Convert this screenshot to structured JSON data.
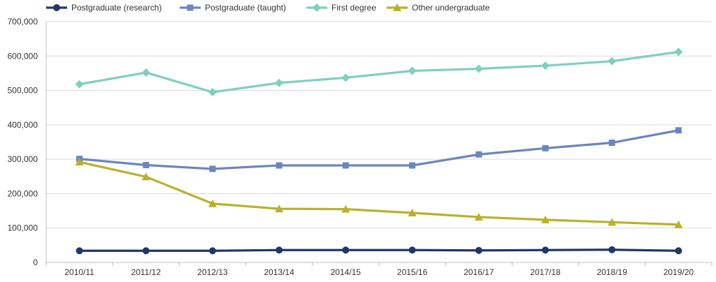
{
  "chart_data": {
    "type": "line",
    "categories": [
      "2010/11",
      "2011/12",
      "2012/13",
      "2013/14",
      "2014/15",
      "2015/16",
      "2016/17",
      "2017/18",
      "2018/19",
      "2019/20"
    ],
    "ylim": [
      0,
      700000
    ],
    "yticks": [
      0,
      100000,
      200000,
      300000,
      400000,
      500000,
      600000,
      700000
    ],
    "ytick_labels": [
      "0",
      "100,000",
      "200,000",
      "300,000",
      "400,000",
      "500,000",
      "600,000",
      "700,000"
    ],
    "grid": true,
    "legend_position": "top",
    "series": [
      {
        "name": "Postgraduate (research)",
        "color": "#1f3864",
        "marker": "circle",
        "values": [
          34000,
          34000,
          34000,
          36000,
          36000,
          36000,
          35000,
          36000,
          37000,
          34000
        ]
      },
      {
        "name": "Postgraduate (taught)",
        "color": "#6b86bd",
        "marker": "square",
        "values": [
          301000,
          283000,
          272000,
          282000,
          282000,
          282000,
          314000,
          332000,
          348000,
          384000
        ]
      },
      {
        "name": "First degree",
        "color": "#7fcfbe",
        "marker": "diamond",
        "values": [
          518000,
          552000,
          495000,
          522000,
          537000,
          557000,
          563000,
          572000,
          585000,
          612000
        ]
      },
      {
        "name": "Other undergraduate",
        "color": "#b9b12c",
        "marker": "triangle",
        "values": [
          292000,
          249000,
          171000,
          156000,
          155000,
          144000,
          132000,
          124000,
          117000,
          110000
        ]
      }
    ]
  }
}
